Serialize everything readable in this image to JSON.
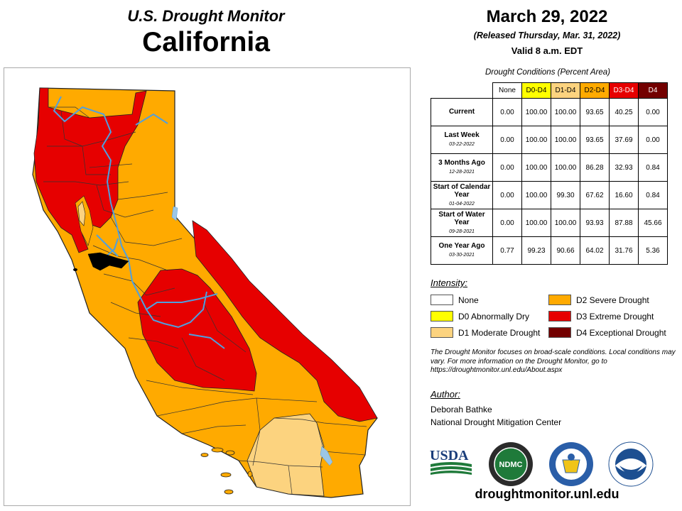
{
  "header": {
    "title": "U.S. Drought Monitor",
    "state": "California",
    "date": "March 29, 2022",
    "released": "(Released Thursday, Mar. 31, 2022)",
    "valid": "Valid 8 a.m. EDT"
  },
  "table": {
    "caption": "Drought Conditions (Percent Area)",
    "columns": [
      {
        "label": "None",
        "color": "#ffffff",
        "text_color": "#000000"
      },
      {
        "label": "D0-D4",
        "color": "#ffff00",
        "text_color": "#000000"
      },
      {
        "label": "D1-D4",
        "color": "#fcd37f",
        "text_color": "#000000"
      },
      {
        "label": "D2-D4",
        "color": "#ffaa00",
        "text_color": "#000000"
      },
      {
        "label": "D3-D4",
        "color": "#e60000",
        "text_color": "#ffffff"
      },
      {
        "label": "D4",
        "color": "#730000",
        "text_color": "#ffffff"
      }
    ],
    "rows": [
      {
        "label": "Current",
        "date": "",
        "values": [
          "0.00",
          "100.00",
          "100.00",
          "93.65",
          "40.25",
          "0.00"
        ]
      },
      {
        "label": "Last Week",
        "date": "03-22-2022",
        "values": [
          "0.00",
          "100.00",
          "100.00",
          "93.65",
          "37.69",
          "0.00"
        ]
      },
      {
        "label": "3 Months Ago",
        "date": "12-28-2021",
        "values": [
          "0.00",
          "100.00",
          "100.00",
          "86.28",
          "32.93",
          "0.84"
        ]
      },
      {
        "label": "Start of Calendar Year",
        "date": "01-04-2022",
        "values": [
          "0.00",
          "100.00",
          "99.30",
          "67.62",
          "16.60",
          "0.84"
        ]
      },
      {
        "label": "Start of Water Year",
        "date": "09-28-2021",
        "values": [
          "0.00",
          "100.00",
          "100.00",
          "93.93",
          "87.88",
          "45.66"
        ]
      },
      {
        "label": "One Year Ago",
        "date": "03-30-2021",
        "values": [
          "0.77",
          "99.23",
          "90.66",
          "64.02",
          "31.76",
          "5.36"
        ]
      }
    ]
  },
  "legend": {
    "title": "Intensity:",
    "items": [
      {
        "label": "None",
        "color": "#ffffff"
      },
      {
        "label": "D0 Abnormally Dry",
        "color": "#ffff00"
      },
      {
        "label": "D1 Moderate Drought",
        "color": "#fcd37f"
      },
      {
        "label": "D2 Severe Drought",
        "color": "#ffaa00"
      },
      {
        "label": "D3 Extreme Drought",
        "color": "#e60000"
      },
      {
        "label": "D4 Exceptional Drought",
        "color": "#730000"
      }
    ]
  },
  "note": "The Drought Monitor focuses on broad-scale conditions. Local conditions may vary. For more information on the Drought Monitor, go to https://droughtmonitor.unl.edu/About.aspx",
  "author": {
    "title": "Author:",
    "name": "Deborah Bathke",
    "org": "National Drought Mitigation Center"
  },
  "logos": {
    "usda": "USDA",
    "ndmc": "NDMC"
  },
  "website": "droughtmonitor.unl.edu",
  "map": {
    "colors": {
      "d1": "#fcd37f",
      "d2": "#ffaa00",
      "d3": "#e60000",
      "water": "#4f9fdf",
      "lake": "#9cc6e6"
    }
  }
}
